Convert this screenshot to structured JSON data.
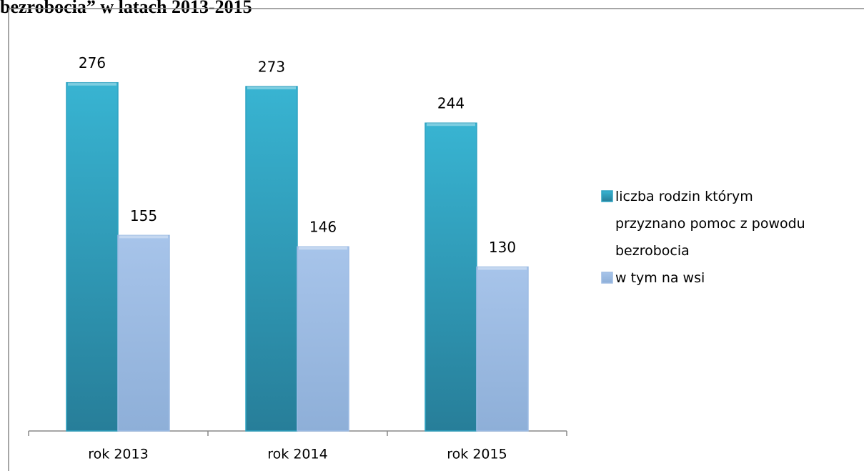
{
  "chart_data": {
    "type": "bar",
    "title": "bezrobocia” w latach 2013-2015",
    "categories": [
      "rok 2013",
      "rok 2014",
      "rok 2015"
    ],
    "series": [
      {
        "name": "liczba rodzin którym przyznano pomoc z powodu bezrobocia",
        "color": "#2fa3c2",
        "values": [
          276,
          273,
          244
        ]
      },
      {
        "name": "w tym na wsi",
        "color": "#9dbce4",
        "values": [
          155,
          146,
          130
        ]
      }
    ],
    "ylim": [
      0,
      290
    ],
    "legend": "right"
  }
}
